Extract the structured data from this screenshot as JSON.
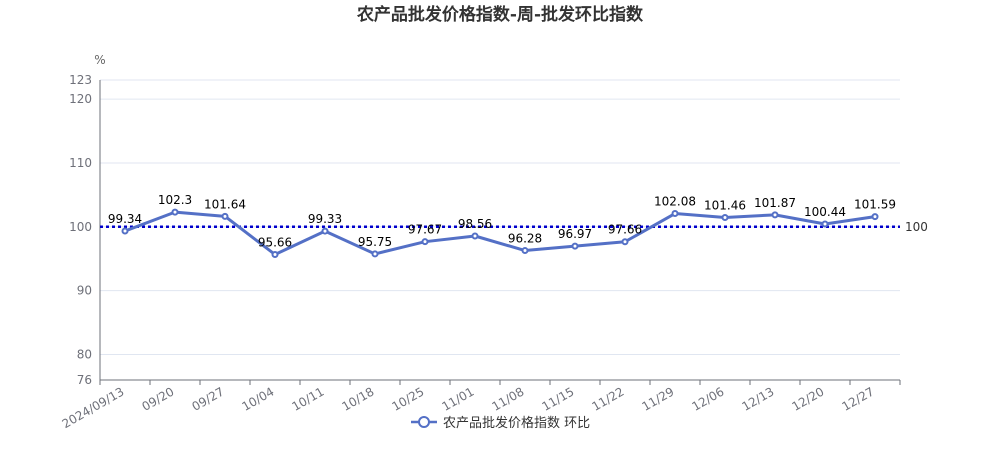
{
  "chart_data": {
    "type": "line",
    "title": "农产品批发价格指数-周-批发环比指数",
    "ylabel": "%",
    "ylim": [
      76,
      123
    ],
    "yticks": [
      76,
      80,
      90,
      100,
      110,
      120,
      123
    ],
    "categories": [
      "2024/09/13",
      "09/20",
      "09/27",
      "10/04",
      "10/11",
      "10/18",
      "10/25",
      "11/01",
      "11/08",
      "11/15",
      "11/22",
      "11/29",
      "12/06",
      "12/13",
      "12/20",
      "12/27"
    ],
    "series": [
      {
        "name": "农产品批发价格指数 环比",
        "values": [
          99.34,
          102.3,
          101.64,
          95.66,
          99.33,
          95.75,
          97.67,
          98.56,
          96.28,
          96.97,
          97.66,
          102.08,
          101.46,
          101.87,
          100.44,
          101.59
        ]
      }
    ],
    "reference_line": {
      "value": 100,
      "label": "100"
    },
    "grid": true,
    "legend": "bottom-center"
  },
  "colors": {
    "series": "#5470c6",
    "reference": "#0000cc",
    "grid": "#e0e6f1",
    "axis": "#6e7079"
  }
}
